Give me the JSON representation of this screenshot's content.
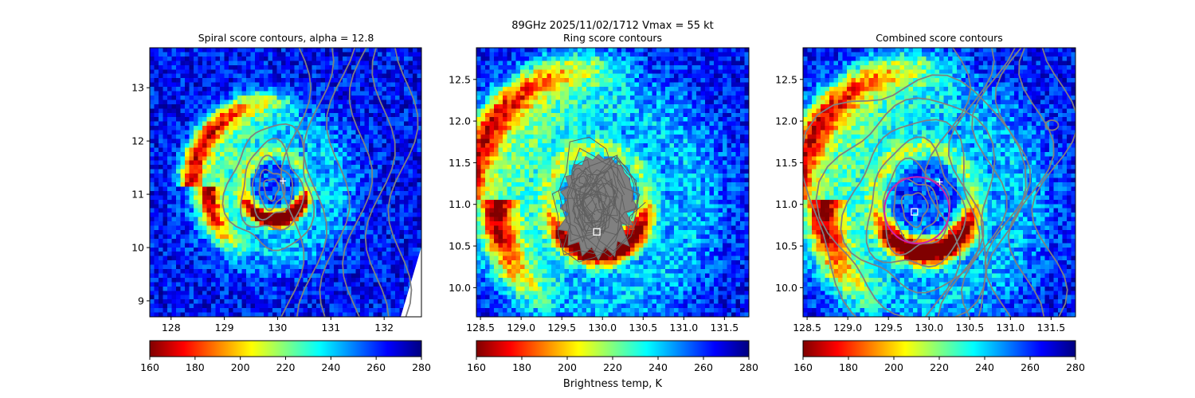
{
  "suptitle": "89GHz  2025/11/02/1712    Vmax = 55 kt",
  "colorbar_label": "Brightness temp, K",
  "colormap_stops": [
    "#800000",
    "#ff0000",
    "#ff8000",
    "#ffff00",
    "#80ff80",
    "#00ffff",
    "#0080ff",
    "#0000ff",
    "#000080"
  ],
  "contour_color": "#808080",
  "circle_color": "#cc22aa",
  "chart_data": [
    {
      "type": "heatmap",
      "title": "Spiral score contours, alpha = 12.8",
      "xlim": [
        127.6,
        132.7
      ],
      "ylim": [
        8.7,
        13.75
      ],
      "xticks": [
        128,
        129,
        130,
        131,
        132
      ],
      "yticks": [
        9,
        10,
        11,
        12,
        13
      ],
      "xtick_labels": [
        "128",
        "129",
        "130",
        "131",
        "132"
      ],
      "ytick_labels": [
        "9",
        "10",
        "11",
        "12",
        "13"
      ],
      "center_marker": {
        "x": 130.1,
        "y": 11.25,
        "marker": "+"
      },
      "colorbar": {
        "range": [
          160,
          280
        ],
        "ticks": [
          "160",
          "180",
          "200",
          "220",
          "240",
          "260",
          "280"
        ]
      }
    },
    {
      "type": "heatmap",
      "title": "Ring score contours",
      "xlim": [
        128.45,
        131.8
      ],
      "ylim": [
        9.65,
        12.88
      ],
      "xticks": [
        128.5,
        129.0,
        129.5,
        130.0,
        130.5,
        131.0,
        131.5
      ],
      "yticks": [
        10.0,
        10.5,
        11.0,
        11.5,
        12.0,
        12.5
      ],
      "xtick_labels": [
        "128.5",
        "129.0",
        "129.5",
        "130.0",
        "130.5",
        "131.0",
        "131.5"
      ],
      "ytick_labels": [
        "10.0",
        "10.5",
        "11.0",
        "11.5",
        "12.0",
        "12.5"
      ],
      "center_marker": {
        "x": 129.93,
        "y": 10.67,
        "marker": "square"
      },
      "colorbar": {
        "range": [
          160,
          280
        ],
        "ticks": [
          "160",
          "180",
          "200",
          "220",
          "240",
          "260",
          "280"
        ]
      }
    },
    {
      "type": "heatmap",
      "title": "Combined score contours",
      "xlim": [
        128.45,
        131.8
      ],
      "ylim": [
        9.65,
        12.88
      ],
      "xticks": [
        128.5,
        129.0,
        129.5,
        130.0,
        130.5,
        131.0,
        131.5
      ],
      "yticks": [
        10.0,
        10.5,
        11.0,
        11.5,
        12.0,
        12.5
      ],
      "xtick_labels": [
        "128.5",
        "129.0",
        "129.5",
        "130.0",
        "130.5",
        "131.0",
        "131.5"
      ],
      "ytick_labels": [
        "10.0",
        "10.5",
        "11.0",
        "11.5",
        "12.0",
        "12.5"
      ],
      "center_marker": {
        "x": 129.82,
        "y": 10.91,
        "marker": "square"
      },
      "cross_marker": {
        "x": 130.13,
        "y": 11.27,
        "marker": "+"
      },
      "ring": {
        "x": 129.85,
        "y": 10.93,
        "radius_deg": 0.4
      },
      "colorbar": {
        "range": [
          160,
          280
        ],
        "ticks": [
          "160",
          "180",
          "200",
          "220",
          "240",
          "260",
          "280"
        ]
      }
    }
  ]
}
